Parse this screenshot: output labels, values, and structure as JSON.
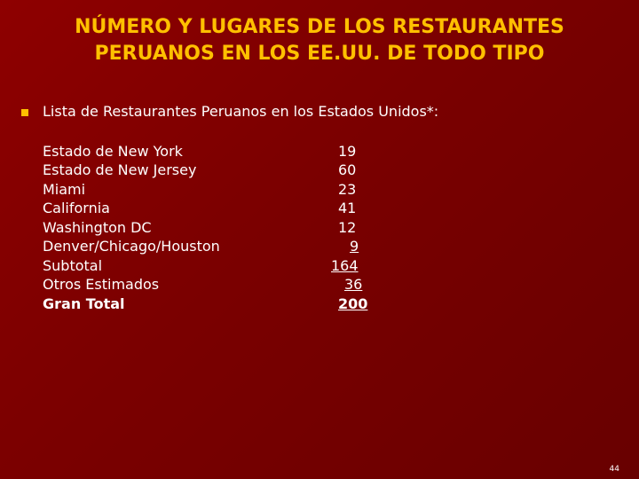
{
  "title": {
    "line1": "NÚMERO Y LUGARES DE LOS RESTAURANTES",
    "line2": "PERUANOS EN LOS EE.UU. DE TODO TIPO"
  },
  "bullet": "Lista de Restaurantes Peruanos en los Estados Unidos*:",
  "rows": [
    {
      "label": "Estado de New York",
      "value": "19"
    },
    {
      "label": "Estado de New Jersey",
      "value": "60"
    },
    {
      "label": "Miami",
      "value": "23"
    },
    {
      "label": "California",
      "value": "41"
    },
    {
      "label": "Washington DC",
      "value": "12"
    },
    {
      "label": "Denver/Chicago/Houston",
      "value": "9"
    },
    {
      "label": "Subtotal",
      "value": "164"
    },
    {
      "label": "Otros Estimados",
      "value": "36"
    },
    {
      "label": "Gran Total",
      "value": "200"
    }
  ],
  "page_number": "44",
  "colors": {
    "title": "#ffc000",
    "background": "#7c0000",
    "bullet": "#ffc000"
  }
}
